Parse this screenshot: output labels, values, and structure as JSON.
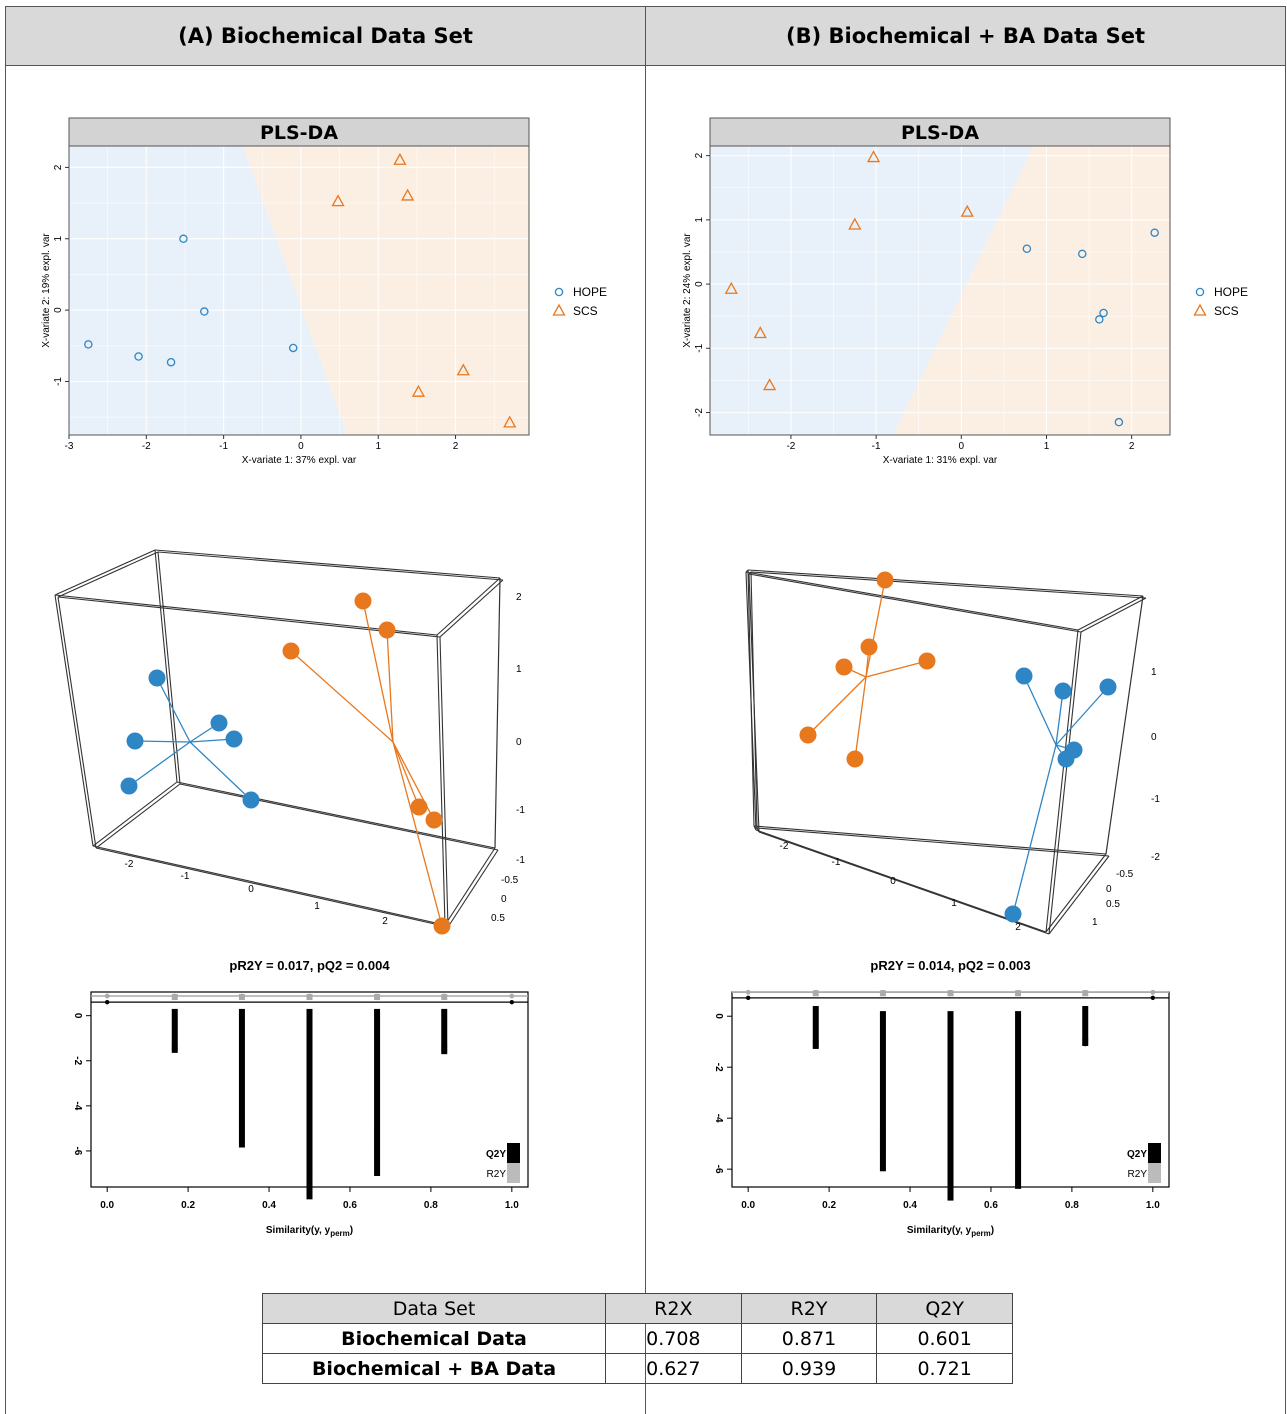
{
  "panels": {
    "a": {
      "header": "(A) Biochemical Data Set"
    },
    "b": {
      "header": "(B) Biochemical + BA Data Set"
    }
  },
  "legend": {
    "hope": "HOPE",
    "scs": "SCS"
  },
  "colors": {
    "hope": "#2f86c4",
    "scs": "#e8781e",
    "hope_bg": "#e8f0f9",
    "scs_bg": "#fbeee2",
    "header_bg": "#d9d9d9"
  },
  "chart_data": [
    {
      "type": "scatter",
      "panel": "A",
      "title": "PLS-DA",
      "xlabel": "X-variate 1: 37% expl. var",
      "ylabel": "X-variate 2: 19% expl. var",
      "xlim": [
        -3,
        2.95
      ],
      "ylim": [
        -1.75,
        2.3
      ],
      "xticks": [
        -3,
        -2,
        -1,
        0,
        1,
        2
      ],
      "yticks": [
        -1,
        0,
        1,
        2
      ],
      "boundary": [
        [
          -0.75,
          2.3
        ],
        [
          0.6,
          -1.75
        ]
      ],
      "series": [
        {
          "name": "HOPE",
          "points": [
            [
              -2.75,
              -0.48
            ],
            [
              -2.1,
              -0.65
            ],
            [
              -1.68,
              -0.73
            ],
            [
              -1.52,
              1.0
            ],
            [
              -1.25,
              -0.02
            ],
            [
              -0.1,
              -0.53
            ]
          ]
        },
        {
          "name": "SCS",
          "points": [
            [
              0.48,
              1.52
            ],
            [
              1.28,
              2.1
            ],
            [
              1.38,
              1.6
            ],
            [
              1.52,
              -1.15
            ],
            [
              2.1,
              -0.85
            ],
            [
              2.7,
              -1.58
            ]
          ]
        }
      ]
    },
    {
      "type": "scatter",
      "panel": "B",
      "title": "PLS-DA",
      "xlabel": "X-variate 1: 31% expl. var",
      "ylabel": "X-variate 2: 24% expl. var",
      "xlim": [
        -2.95,
        2.45
      ],
      "ylim": [
        -2.35,
        2.15
      ],
      "xticks": [
        -2,
        -1,
        0,
        1,
        2
      ],
      "yticks": [
        -2,
        -1,
        0,
        1,
        2
      ],
      "boundary": [
        [
          0.85,
          2.15
        ],
        [
          -0.8,
          -2.35
        ]
      ],
      "series": [
        {
          "name": "HOPE",
          "points": [
            [
              0.77,
              0.55
            ],
            [
              1.42,
              0.47
            ],
            [
              1.62,
              -0.55
            ],
            [
              1.67,
              -0.45
            ],
            [
              1.85,
              -2.15
            ],
            [
              2.27,
              0.8
            ]
          ]
        },
        {
          "name": "SCS",
          "points": [
            [
              -2.7,
              -0.08
            ],
            [
              -2.36,
              -0.77
            ],
            [
              -2.25,
              -1.58
            ],
            [
              -1.25,
              0.92
            ],
            [
              -1.03,
              1.97
            ],
            [
              0.07,
              1.12
            ]
          ]
        }
      ]
    },
    {
      "type": "scatter3d",
      "panel": "A",
      "z_ticks": [
        "2",
        "1",
        "0",
        "-1"
      ],
      "x_ticks": [
        "-2",
        "-1",
        "0",
        "1",
        "2"
      ],
      "y_ticks": [
        "-1",
        "-0.5",
        "0",
        "0.5"
      ],
      "hope_centroid": [
        -1.6,
        0.0,
        0.0
      ],
      "scs_centroid": [
        1.6,
        0.0,
        0.0
      ]
    },
    {
      "type": "scatter3d",
      "panel": "B",
      "z_ticks": [
        "1",
        "0",
        "-1",
        "-2"
      ],
      "x_ticks": [
        "-2",
        "-1",
        "0",
        "1",
        "2"
      ],
      "y_ticks": [
        "-0.5",
        "0",
        "0.5",
        "1"
      ],
      "hope_centroid": [
        1.5,
        0.0,
        0.0
      ],
      "scs_centroid": [
        -1.5,
        0.0,
        0.0
      ]
    },
    {
      "type": "scatter",
      "panel": "A",
      "title": "pR2Y = 0.017, pQ2 = 0.004",
      "xlabel": "Similarity(y, y",
      "xlabel_sub": "perm",
      "xlabel_end": ")",
      "xlim": [
        -0.04,
        1.04
      ],
      "ylim": [
        -7.6,
        1.05
      ],
      "xticks": [
        "0.0",
        "0.2",
        "0.4",
        "0.6",
        "0.8",
        "1.0"
      ],
      "yticks": [
        "0",
        "-2",
        "-4",
        "-6"
      ],
      "r2y_line": 0.87,
      "q2y_line": 0.6,
      "legend": {
        "q2y": "Q2Y",
        "r2y": "R2Y"
      },
      "columns": [
        {
          "x": 0.0,
          "q2y_min": 0.6,
          "q2y_max": 0.6
        },
        {
          "x": 0.167,
          "q2y_min": -1.55,
          "q2y_max": 0.3
        },
        {
          "x": 0.333,
          "q2y_min": -5.2,
          "q2y_max": 0.3
        },
        {
          "x": 0.5,
          "q2y_min": -7.2,
          "q2y_max": 0.3
        },
        {
          "x": 0.667,
          "q2y_min": -6.3,
          "q2y_max": 0.3
        },
        {
          "x": 0.833,
          "q2y_min": -1.6,
          "q2y_max": 0.3
        },
        {
          "x": 1.0,
          "q2y_min": 0.6,
          "q2y_max": 0.6
        }
      ]
    },
    {
      "type": "scatter",
      "panel": "B",
      "title": "pR2Y = 0.014, pQ2 = 0.003",
      "xlabel": "Similarity(y, y",
      "xlabel_sub": "perm",
      "xlabel_end": ")",
      "xlim": [
        -0.04,
        1.04
      ],
      "ylim": [
        -6.7,
        0.95
      ],
      "xticks": [
        "0.0",
        "0.2",
        "0.4",
        "0.6",
        "0.8",
        "1.0"
      ],
      "yticks": [
        "0",
        "-2",
        "-4",
        "-6"
      ],
      "r2y_line": 0.94,
      "q2y_line": 0.72,
      "legend": {
        "q2y": "Q2Y",
        "r2y": "R2Y"
      },
      "columns": [
        {
          "x": 0.0,
          "q2y_min": 0.72,
          "q2y_max": 0.72
        },
        {
          "x": 0.167,
          "q2y_min": -1.2,
          "q2y_max": 0.4
        },
        {
          "x": 0.333,
          "q2y_min": -5.4,
          "q2y_max": 0.2
        },
        {
          "x": 0.5,
          "q2y_min": -6.4,
          "q2y_max": 0.2
        },
        {
          "x": 0.667,
          "q2y_min": -6.0,
          "q2y_max": 0.2
        },
        {
          "x": 0.833,
          "q2y_min": -1.1,
          "q2y_max": 0.4
        },
        {
          "x": 1.0,
          "q2y_min": 0.72,
          "q2y_max": 0.72
        }
      ]
    }
  ],
  "summary_table": {
    "headers": [
      "Data Set",
      "R2X",
      "R2Y",
      "Q2Y"
    ],
    "rows": [
      {
        "label": "Biochemical Data",
        "r2x": "0.708",
        "r2y": "0.871",
        "q2y": "0.601"
      },
      {
        "label": "Biochemical + BA Data",
        "r2x": "0.627",
        "r2y": "0.939",
        "q2y": "0.721"
      }
    ]
  }
}
